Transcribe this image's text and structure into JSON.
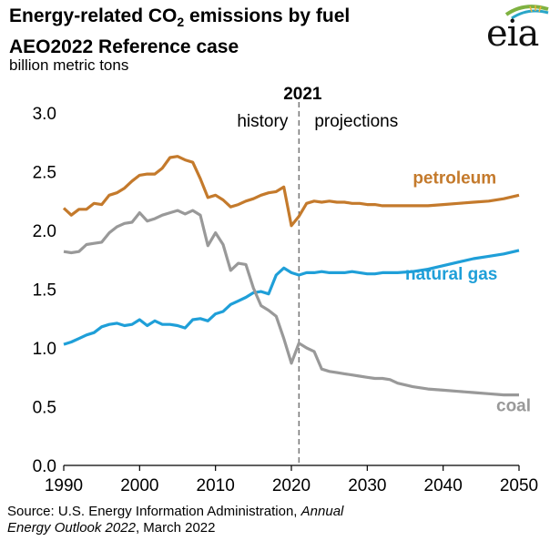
{
  "header": {
    "title_line1_pre": "Energy-related CO",
    "title_line1_sub": "2",
    "title_line1_post": " emissions by fuel",
    "title_line2": "AEO2022 Reference case",
    "units": "billion metric tons"
  },
  "logo": {
    "text": "eia",
    "icon": "eia-sun-swoosh-logo",
    "accent_color": "#7fb241"
  },
  "source": {
    "prefix": "Source: U.S. Energy Information Administration, ",
    "italic1": "Annual",
    "italic2": "Energy Outlook 2022",
    "suffix": ", March 2022"
  },
  "chart_data": {
    "type": "line",
    "title": "Energy-related CO2 emissions by fuel",
    "subtitle": "AEO2022 Reference case",
    "ylabel": "billion metric tons",
    "xlabel": "",
    "xlim": [
      1990,
      2050
    ],
    "ylim": [
      0,
      3
    ],
    "x_ticks": [
      1990,
      2000,
      2010,
      2020,
      2030,
      2040,
      2050
    ],
    "y_ticks": [
      0.0,
      0.5,
      1.0,
      1.5,
      2.0,
      2.5,
      3.0
    ],
    "x_tick_labels": [
      "1990",
      "2000",
      "2010",
      "2020",
      "2030",
      "2040",
      "2050"
    ],
    "y_tick_labels": [
      "0.0",
      "0.5",
      "1.0",
      "1.5",
      "2.0",
      "2.5",
      "3.0"
    ],
    "grid": false,
    "divider": {
      "x": 2021,
      "label": "2021",
      "left_label": "history",
      "right_label": "projections"
    },
    "series": [
      {
        "name": "petroleum",
        "color": "#c47a2c",
        "label_anchor": [
          2036,
          2.4
        ],
        "points": [
          [
            1990,
            2.19
          ],
          [
            1991,
            2.13
          ],
          [
            1992,
            2.18
          ],
          [
            1993,
            2.18
          ],
          [
            1994,
            2.23
          ],
          [
            1995,
            2.22
          ],
          [
            1996,
            2.3
          ],
          [
            1997,
            2.32
          ],
          [
            1998,
            2.36
          ],
          [
            1999,
            2.42
          ],
          [
            2000,
            2.47
          ],
          [
            2001,
            2.48
          ],
          [
            2002,
            2.48
          ],
          [
            2003,
            2.53
          ],
          [
            2004,
            2.62
          ],
          [
            2005,
            2.63
          ],
          [
            2006,
            2.6
          ],
          [
            2007,
            2.58
          ],
          [
            2008,
            2.44
          ],
          [
            2009,
            2.28
          ],
          [
            2010,
            2.3
          ],
          [
            2011,
            2.26
          ],
          [
            2012,
            2.2
          ],
          [
            2013,
            2.22
          ],
          [
            2014,
            2.25
          ],
          [
            2015,
            2.27
          ],
          [
            2016,
            2.3
          ],
          [
            2017,
            2.32
          ],
          [
            2018,
            2.33
          ],
          [
            2019,
            2.37
          ],
          [
            2020,
            2.04
          ],
          [
            2021,
            2.12
          ],
          [
            2022,
            2.23
          ],
          [
            2023,
            2.25
          ],
          [
            2024,
            2.24
          ],
          [
            2025,
            2.25
          ],
          [
            2026,
            2.24
          ],
          [
            2027,
            2.24
          ],
          [
            2028,
            2.23
          ],
          [
            2029,
            2.23
          ],
          [
            2030,
            2.22
          ],
          [
            2031,
            2.22
          ],
          [
            2032,
            2.21
          ],
          [
            2034,
            2.21
          ],
          [
            2036,
            2.21
          ],
          [
            2038,
            2.21
          ],
          [
            2040,
            2.22
          ],
          [
            2042,
            2.23
          ],
          [
            2044,
            2.24
          ],
          [
            2046,
            2.25
          ],
          [
            2048,
            2.27
          ],
          [
            2050,
            2.3
          ]
        ]
      },
      {
        "name": "natural gas",
        "color": "#1f9fd8",
        "label_anchor": [
          2035,
          1.58
        ],
        "points": [
          [
            1990,
            1.03
          ],
          [
            1991,
            1.05
          ],
          [
            1992,
            1.08
          ],
          [
            1993,
            1.11
          ],
          [
            1994,
            1.13
          ],
          [
            1995,
            1.18
          ],
          [
            1996,
            1.2
          ],
          [
            1997,
            1.21
          ],
          [
            1998,
            1.19
          ],
          [
            1999,
            1.2
          ],
          [
            2000,
            1.24
          ],
          [
            2001,
            1.19
          ],
          [
            2002,
            1.23
          ],
          [
            2003,
            1.2
          ],
          [
            2004,
            1.2
          ],
          [
            2005,
            1.19
          ],
          [
            2006,
            1.17
          ],
          [
            2007,
            1.24
          ],
          [
            2008,
            1.25
          ],
          [
            2009,
            1.23
          ],
          [
            2010,
            1.29
          ],
          [
            2011,
            1.31
          ],
          [
            2012,
            1.37
          ],
          [
            2013,
            1.4
          ],
          [
            2014,
            1.43
          ],
          [
            2015,
            1.47
          ],
          [
            2016,
            1.48
          ],
          [
            2017,
            1.46
          ],
          [
            2018,
            1.62
          ],
          [
            2019,
            1.68
          ],
          [
            2020,
            1.64
          ],
          [
            2021,
            1.62
          ],
          [
            2022,
            1.64
          ],
          [
            2023,
            1.64
          ],
          [
            2024,
            1.65
          ],
          [
            2025,
            1.64
          ],
          [
            2026,
            1.64
          ],
          [
            2027,
            1.64
          ],
          [
            2028,
            1.65
          ],
          [
            2029,
            1.64
          ],
          [
            2030,
            1.63
          ],
          [
            2031,
            1.63
          ],
          [
            2032,
            1.64
          ],
          [
            2034,
            1.64
          ],
          [
            2036,
            1.65
          ],
          [
            2038,
            1.67
          ],
          [
            2040,
            1.7
          ],
          [
            2042,
            1.73
          ],
          [
            2044,
            1.76
          ],
          [
            2046,
            1.78
          ],
          [
            2048,
            1.8
          ],
          [
            2050,
            1.83
          ]
        ]
      },
      {
        "name": "coal",
        "color": "#999999",
        "label_anchor": [
          2047,
          0.46
        ],
        "points": [
          [
            1990,
            1.82
          ],
          [
            1991,
            1.81
          ],
          [
            1992,
            1.82
          ],
          [
            1993,
            1.88
          ],
          [
            1994,
            1.89
          ],
          [
            1995,
            1.9
          ],
          [
            1996,
            1.98
          ],
          [
            1997,
            2.03
          ],
          [
            1998,
            2.06
          ],
          [
            1999,
            2.07
          ],
          [
            2000,
            2.15
          ],
          [
            2001,
            2.08
          ],
          [
            2002,
            2.1
          ],
          [
            2003,
            2.13
          ],
          [
            2004,
            2.15
          ],
          [
            2005,
            2.17
          ],
          [
            2006,
            2.14
          ],
          [
            2007,
            2.17
          ],
          [
            2008,
            2.13
          ],
          [
            2009,
            1.87
          ],
          [
            2010,
            1.98
          ],
          [
            2011,
            1.88
          ],
          [
            2012,
            1.66
          ],
          [
            2013,
            1.72
          ],
          [
            2014,
            1.71
          ],
          [
            2015,
            1.51
          ],
          [
            2016,
            1.36
          ],
          [
            2017,
            1.32
          ],
          [
            2018,
            1.27
          ],
          [
            2019,
            1.08
          ],
          [
            2020,
            0.87
          ],
          [
            2021,
            1.04
          ],
          [
            2022,
            1.0
          ],
          [
            2023,
            0.97
          ],
          [
            2024,
            0.82
          ],
          [
            2025,
            0.8
          ],
          [
            2026,
            0.79
          ],
          [
            2027,
            0.78
          ],
          [
            2028,
            0.77
          ],
          [
            2029,
            0.76
          ],
          [
            2030,
            0.75
          ],
          [
            2031,
            0.74
          ],
          [
            2032,
            0.74
          ],
          [
            2033,
            0.73
          ],
          [
            2034,
            0.7
          ],
          [
            2036,
            0.67
          ],
          [
            2038,
            0.65
          ],
          [
            2040,
            0.64
          ],
          [
            2042,
            0.63
          ],
          [
            2044,
            0.62
          ],
          [
            2046,
            0.61
          ],
          [
            2048,
            0.6
          ],
          [
            2050,
            0.6
          ]
        ]
      }
    ]
  }
}
